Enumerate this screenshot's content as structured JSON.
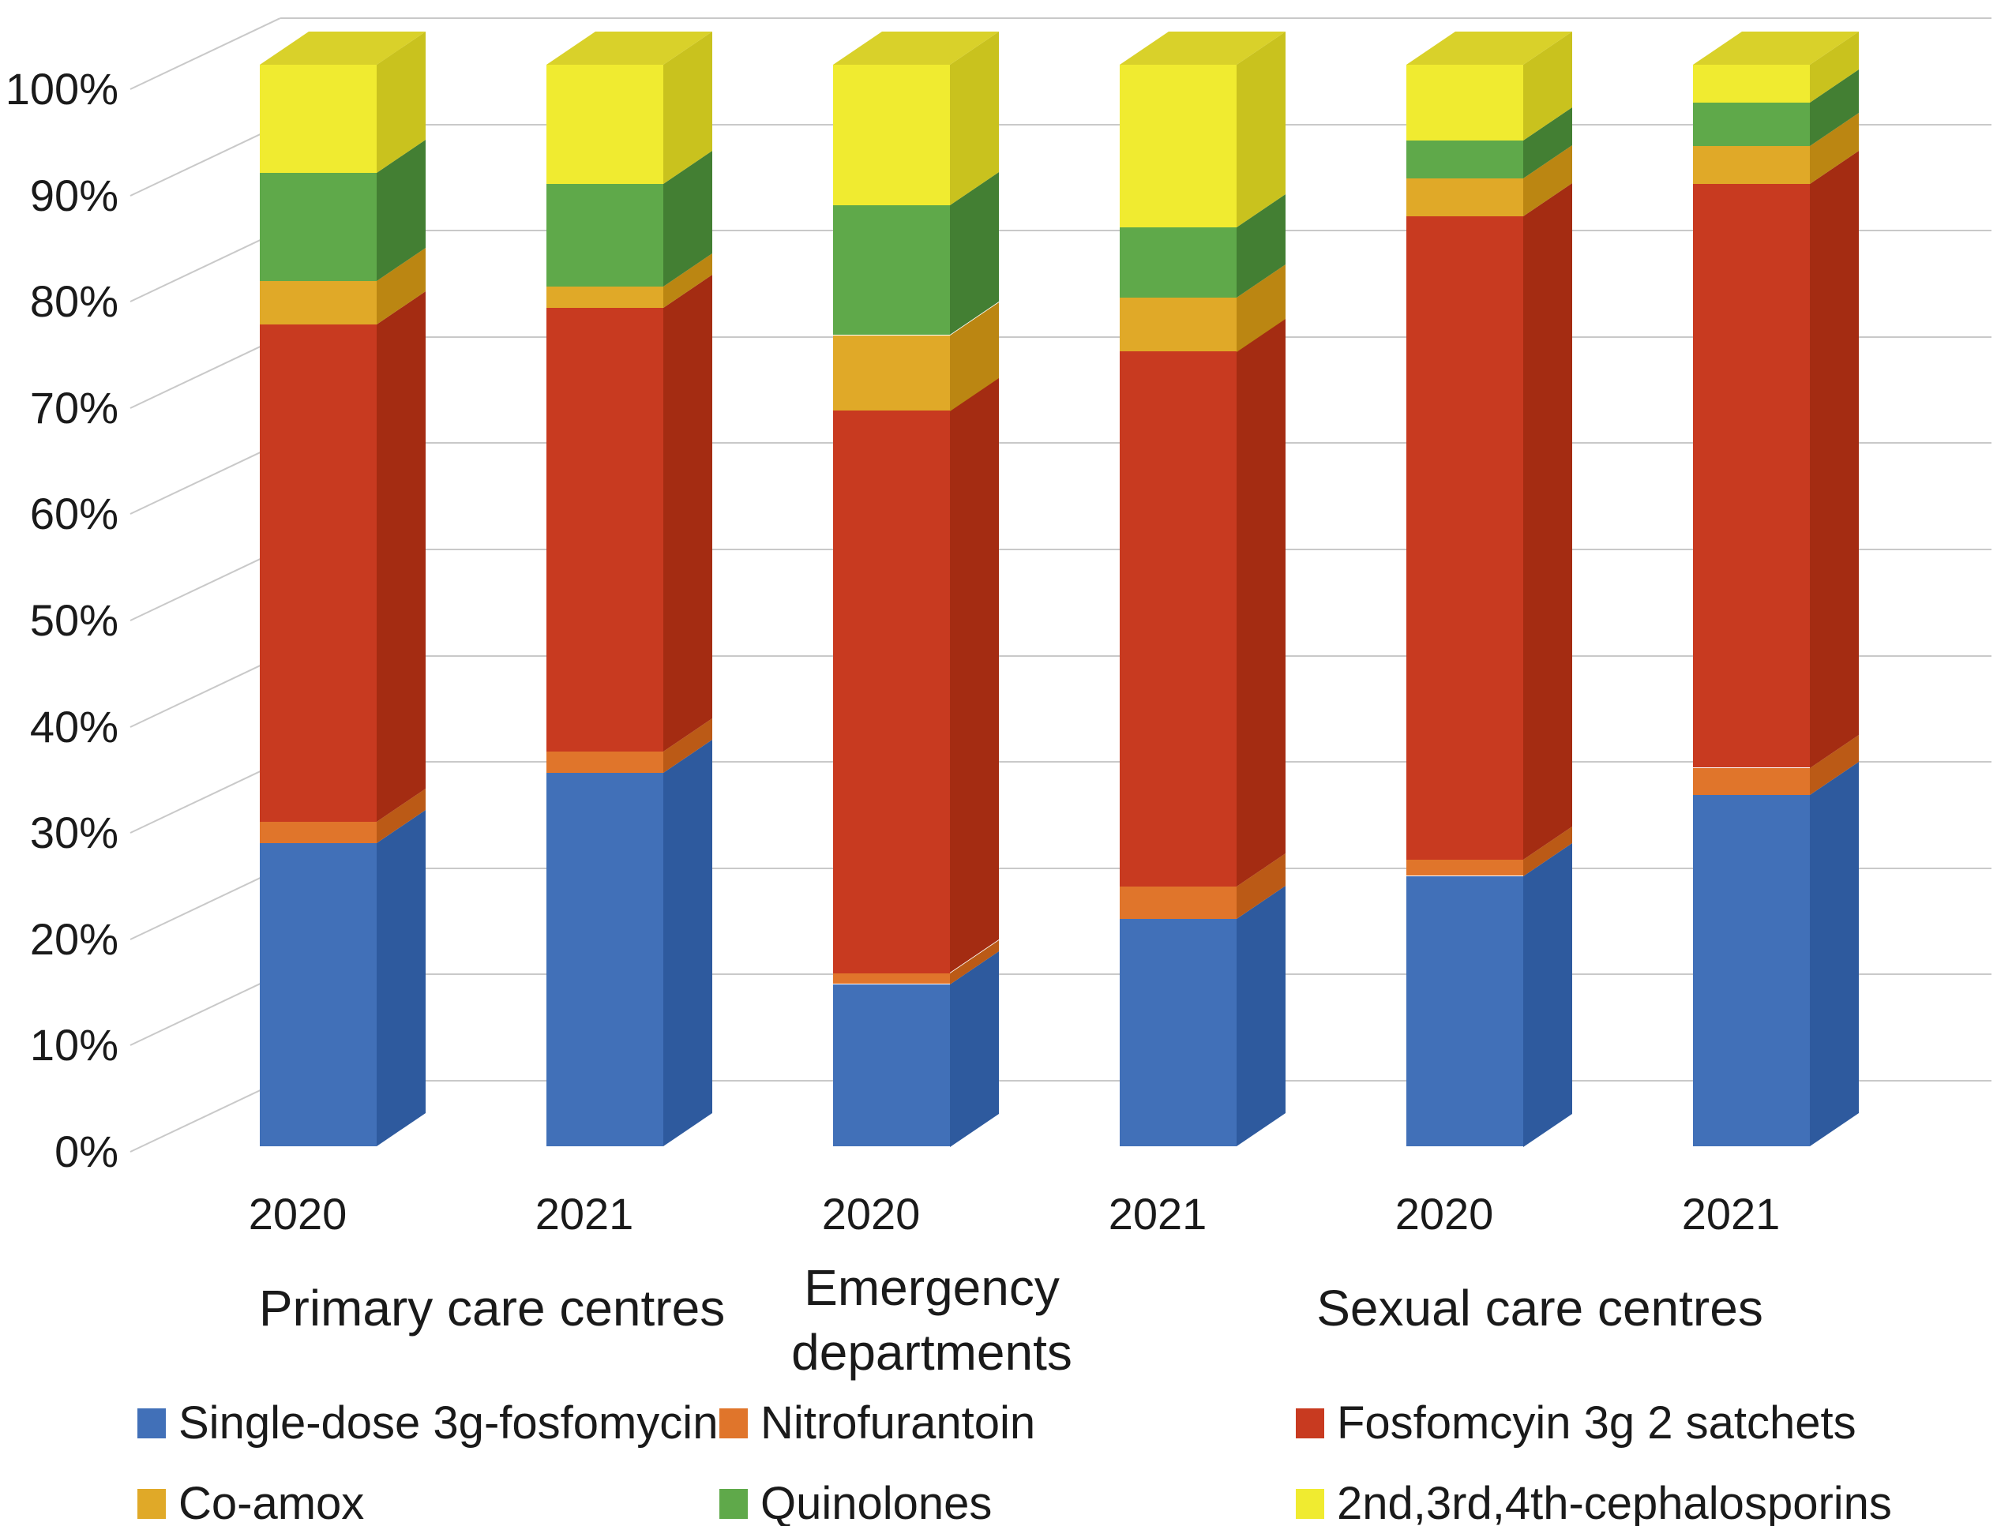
{
  "chart_data": {
    "type": "bar",
    "stacked": true,
    "percent_stacked": true,
    "unit": "%",
    "title": "",
    "ylim": [
      0,
      100
    ],
    "grid": true,
    "pseudo_3d": true,
    "y_ticks": [
      "100%",
      "90%",
      "80%",
      "70%",
      "60%",
      "50%",
      "40%",
      "30%",
      "20%",
      "10%",
      "0%"
    ],
    "categories": [
      "2020",
      "2021",
      "2020",
      "2021",
      "2020",
      "2021"
    ],
    "groups": [
      {
        "label": "Primary care centres",
        "lines": [
          "Primary care centres"
        ]
      },
      {
        "label": "Emergency departments",
        "lines": [
          "Emergency",
          "departments"
        ]
      },
      {
        "label": "Sexual care centres",
        "lines": [
          "Sexual care centres"
        ]
      }
    ],
    "series": [
      {
        "name": "Single-dose 3g-fosfomycin",
        "color": "#4170b8",
        "side_color": "#2e5a9e",
        "values": [
          28,
          34.5,
          15,
          21,
          25,
          32.5
        ]
      },
      {
        "name": "Nitrofurantoin",
        "color": "#e0752b",
        "side_color": "#bb5a16",
        "values": [
          2,
          2,
          1,
          3,
          1.5,
          2.5
        ]
      },
      {
        "name": "Fosfomcyin 3g 2 satchets",
        "color": "#c83a20",
        "side_color": "#a42c12",
        "values": [
          46,
          41,
          52,
          49.5,
          59.5,
          54
        ]
      },
      {
        "name": "Co-amox",
        "color": "#e0a928",
        "side_color": "#bb8612",
        "values": [
          4,
          2,
          7,
          5,
          3.5,
          3.5
        ]
      },
      {
        "name": "Quinolones",
        "color": "#5fa94a",
        "side_color": "#437f33",
        "values": [
          10,
          9.5,
          12,
          6.5,
          3.5,
          4
        ]
      },
      {
        "name": "2nd,3rd,4th-cephalosporins",
        "color": "#f0eb30",
        "side_color": "#c9c21e",
        "top_color": "#d9d12a",
        "values": [
          10,
          11,
          13,
          15,
          7,
          3.5
        ]
      }
    ],
    "legend_position": "bottom",
    "legend_rows": [
      [
        0,
        1,
        2
      ],
      [
        3,
        4,
        5
      ]
    ]
  }
}
